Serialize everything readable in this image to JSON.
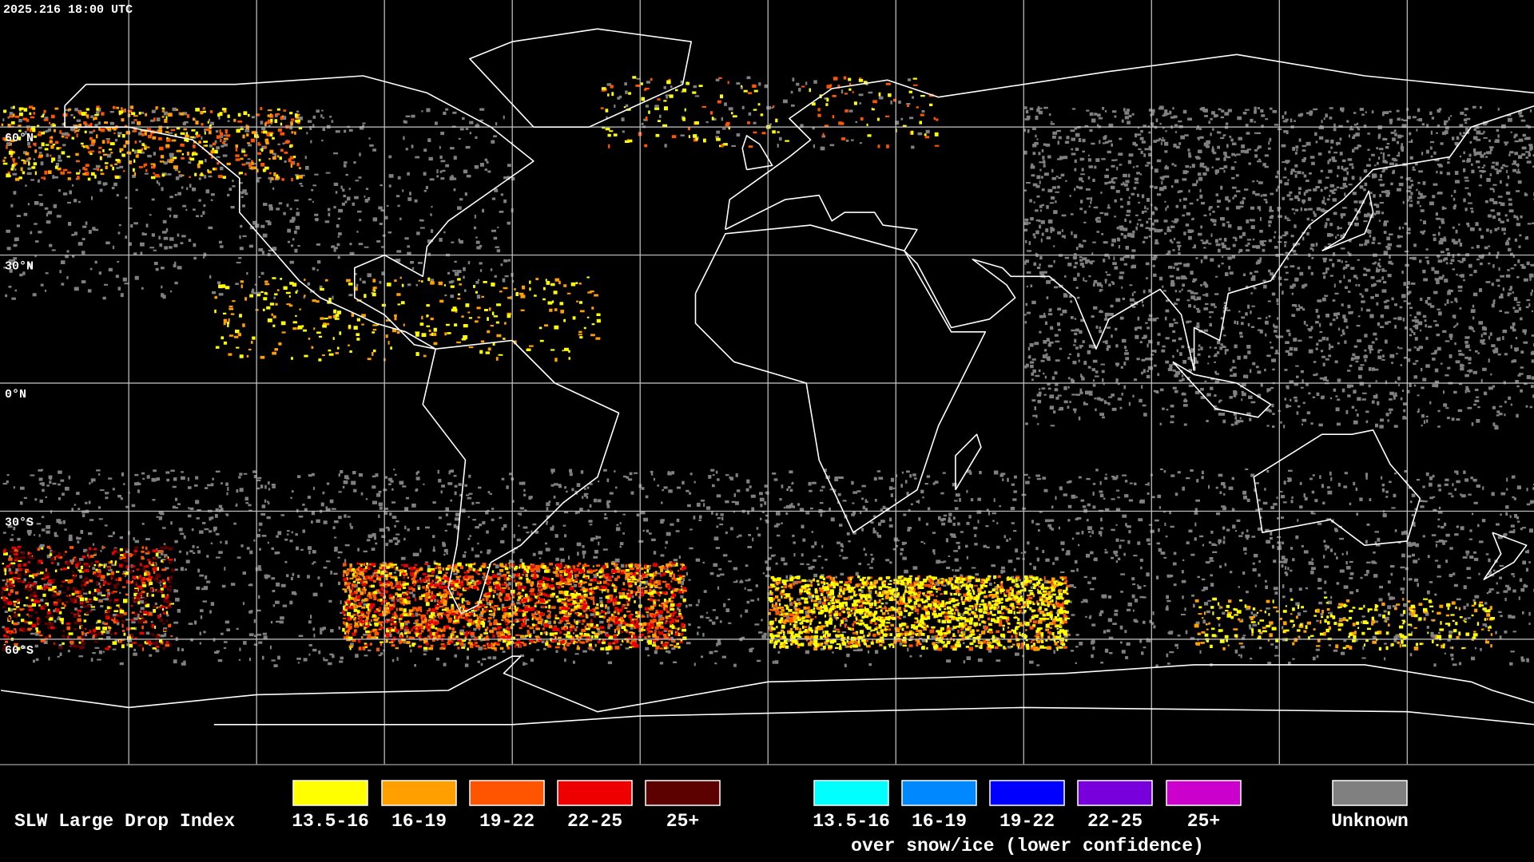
{
  "header": {
    "timestamp": "2025.216 18:00 UTC"
  },
  "map": {
    "latitude_labels": [
      "60°N",
      "30°N",
      "0°N",
      "30°S",
      "60°S"
    ]
  },
  "legend": {
    "title": "SLW Large Drop Index",
    "liquid": [
      {
        "label": "13.5-16",
        "color": "#ffff00"
      },
      {
        "label": "16-19",
        "color": "#ffa000"
      },
      {
        "label": "19-22",
        "color": "#ff5500"
      },
      {
        "label": "22-25",
        "color": "#ee0000"
      },
      {
        "label": "25+",
        "color": "#5c0000"
      }
    ],
    "snow_ice": {
      "caption": "over snow/ice (lower confidence)",
      "items": [
        {
          "label": "13.5-16",
          "color": "#00ffff"
        },
        {
          "label": "16-19",
          "color": "#0088ff"
        },
        {
          "label": "19-22",
          "color": "#0000ff"
        },
        {
          "label": "22-25",
          "color": "#7700dd"
        },
        {
          "label": "25+",
          "color": "#cc00cc"
        }
      ]
    },
    "unknown": {
      "label": "Unknown",
      "color": "#808080"
    }
  }
}
